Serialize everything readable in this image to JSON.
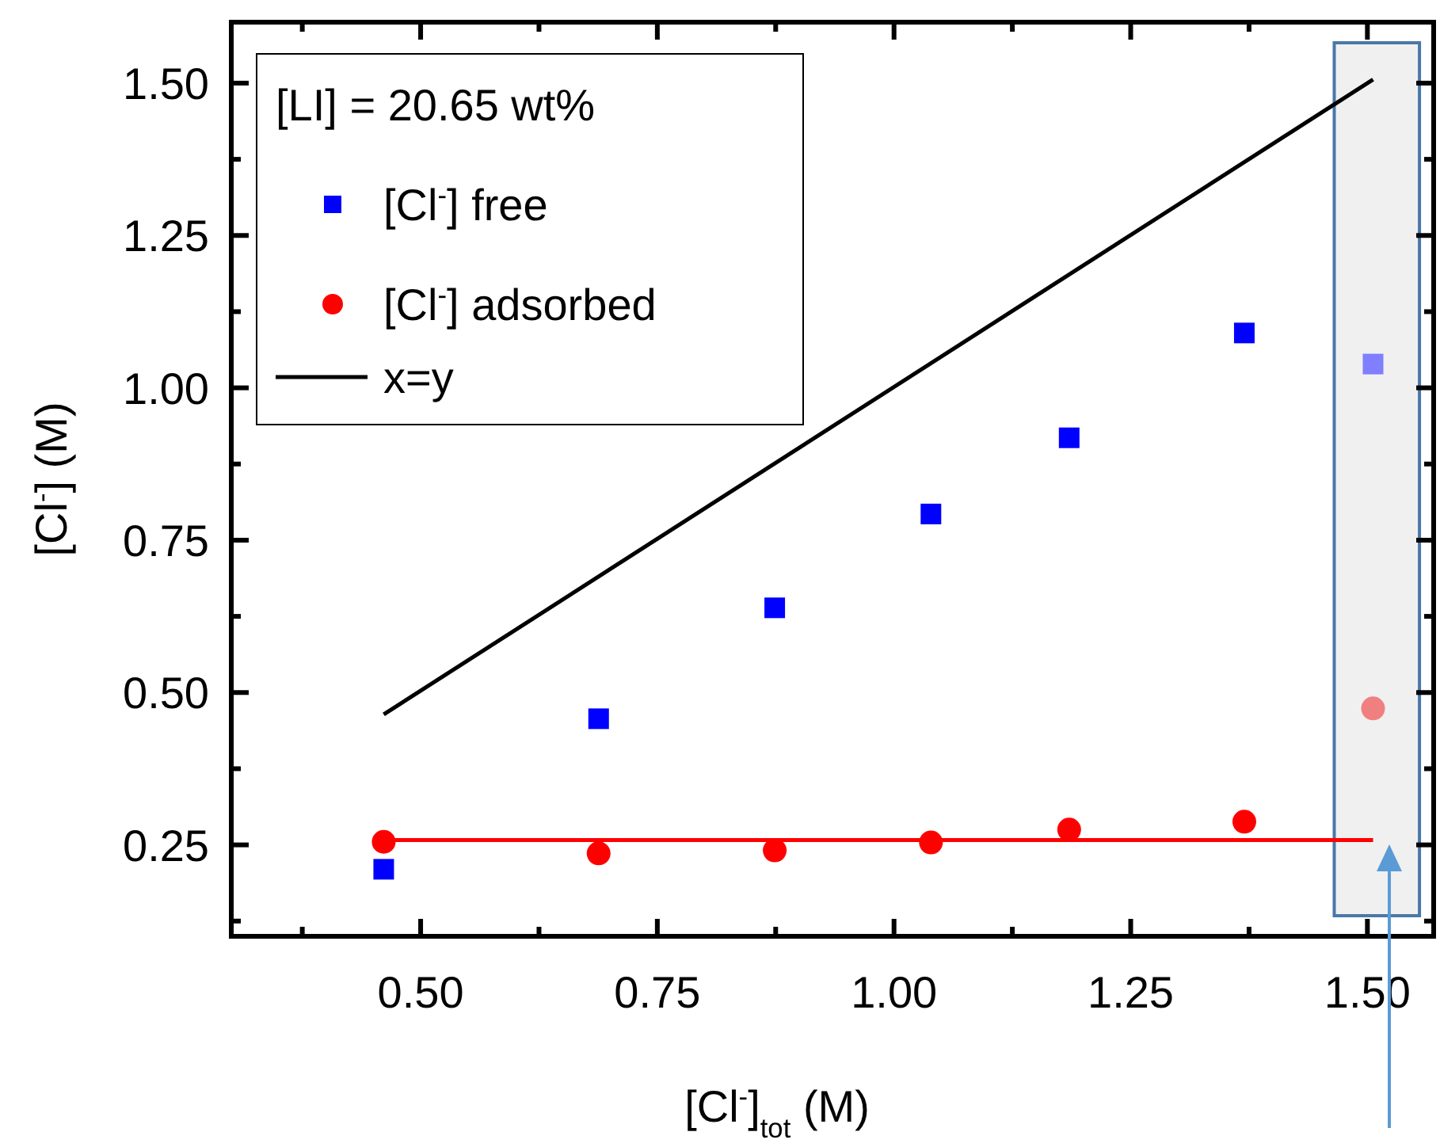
{
  "chart_data": {
    "type": "scatter",
    "xlabel": "[Cl$^{-}$]$_{tot}$ (M)",
    "ylabel": "[Cl$^{-}$] (M)",
    "legend_title": "[LI] = 20.65 wt%",
    "legend": "top left",
    "xlim": [
      0.3,
      1.57
    ],
    "ylim": [
      0.1,
      1.6
    ],
    "xticks": [
      {
        "value": 0.375,
        "label": null
      },
      {
        "value": 0.5,
        "label": "0.50"
      },
      {
        "value": 0.625,
        "label": null
      },
      0.75,
      {
        "value": 0.875,
        "label": null
      },
      {
        "value": 1.0,
        "label": "1.00"
      },
      {
        "value": 1.125,
        "label": null
      },
      1.25,
      {
        "value": 1.375,
        "label": null
      },
      {
        "value": 1.5,
        "label": "1.50"
      }
    ],
    "yticks": [
      {
        "value": 0.125,
        "label": null
      },
      0.25,
      {
        "value": 0.375,
        "label": null
      },
      {
        "value": 0.5,
        "label": "0.50"
      },
      {
        "value": 0.625,
        "label": null
      },
      0.75,
      {
        "value": 0.875,
        "label": null
      },
      {
        "value": 1.0,
        "label": "1.00"
      },
      {
        "value": 1.125,
        "label": null
      },
      1.25,
      {
        "value": 1.375,
        "label": null
      },
      {
        "value": 1.5,
        "label": "1.50"
      }
    ],
    "bands": [
      {
        "axis": "x",
        "from": 1.465,
        "to": 1.555,
        "color": "#f0f0f0"
      }
    ],
    "series": [
      {
        "name": "[Cl$^{-}$] free",
        "marker": "square",
        "color": "#0000ff",
        "colors": [
          "#0000ff",
          "#0000ff",
          "#0000ff",
          "#0000ff",
          "#0000ff",
          "#0000ff",
          "#7f7fff"
        ],
        "x": [
          0.461,
          0.688,
          0.874,
          1.039,
          1.185,
          1.37,
          1.506
        ],
        "values": [
          0.21,
          0.457,
          0.639,
          0.793,
          0.918,
          1.09,
          1.039
        ]
      },
      {
        "name": "[Cl$^{-}$] adsorbed",
        "marker": "circle",
        "color": "#ff0000",
        "colors": [
          "#ff0000",
          "#ff0000",
          "#ff0000",
          "#ff0000",
          "#ff0000",
          "#ff0000",
          "#f08080"
        ],
        "x": [
          0.461,
          0.688,
          0.874,
          1.039,
          1.185,
          1.37,
          1.506
        ],
        "values": [
          0.255,
          0.236,
          0.241,
          0.254,
          0.275,
          0.288,
          0.474
        ]
      },
      {
        "name": "x=y",
        "type": "line",
        "line_style": "solid",
        "color": "#000000",
        "x": [
          0.461,
          1.506
        ],
        "values": [
          0.464,
          1.506
        ]
      },
      {
        "type": "line",
        "line_style": "solid",
        "color": "#ff0000",
        "x": [
          0.461,
          1.506
        ],
        "values": [
          0.258,
          0.258
        ]
      }
    ]
  }
}
